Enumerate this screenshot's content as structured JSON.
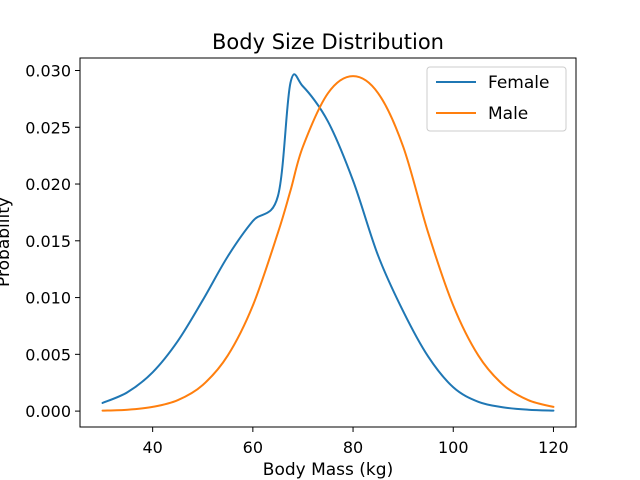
{
  "chart_data": {
    "type": "line",
    "title": "Body Size Distribution",
    "xlabel": "Body Mass (kg)",
    "ylabel": "Probability",
    "xlim": [
      25.5,
      124.5
    ],
    "ylim": [
      -0.0014,
      0.0311
    ],
    "xticks": [
      40,
      60,
      80,
      100,
      120
    ],
    "yticks": [
      0.0,
      0.005,
      0.01,
      0.015,
      0.02,
      0.025,
      0.03
    ],
    "ytick_labels": [
      "0.000",
      "0.005",
      "0.010",
      "0.015",
      "0.020",
      "0.025",
      "0.030"
    ],
    "grid": false,
    "legend_position": "upper right",
    "x": [
      30,
      35,
      40,
      45,
      50,
      55,
      60,
      65,
      67.5,
      70,
      75,
      80,
      85,
      90,
      95,
      100,
      105,
      110,
      115,
      120
    ],
    "series": [
      {
        "name": "Female",
        "color": "#1f77b4",
        "values": [
          0.00072,
          0.00167,
          0.00342,
          0.00616,
          0.00977,
          0.01363,
          0.01674,
          0.01893,
          0.0289,
          0.0286,
          0.0255,
          0.0203,
          0.0137,
          0.0088,
          0.0048,
          0.0021,
          0.00082,
          0.00033,
          0.00012,
          4e-05
        ]
      },
      {
        "name": "Male",
        "color": "#ff7f0e",
        "values": [
          4e-05,
          0.00012,
          0.00037,
          0.00096,
          0.0023,
          0.0049,
          0.0093,
          0.0157,
          0.0194,
          0.0233,
          0.028,
          0.0295,
          0.028,
          0.0233,
          0.0157,
          0.0093,
          0.0049,
          0.0023,
          0.00096,
          0.00037
        ]
      }
    ]
  }
}
